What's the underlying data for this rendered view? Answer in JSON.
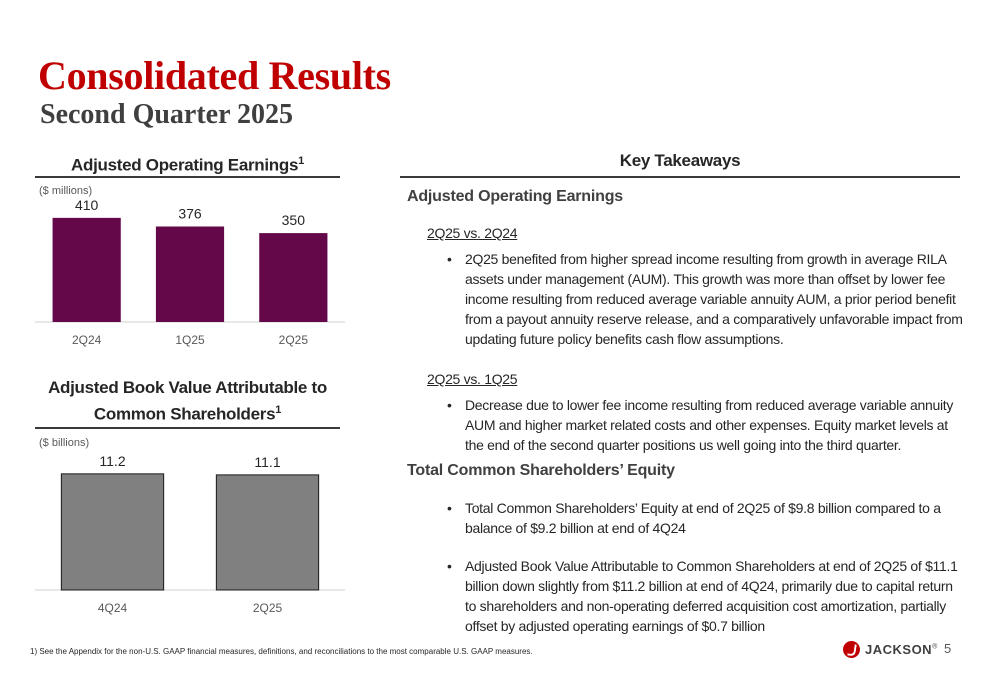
{
  "title": "Consolidated Results",
  "subtitle": "Second Quarter 2025",
  "earnings_chart": {
    "heading": "Adjusted Operating Earnings",
    "heading_sup": "1",
    "unit": "($ millions)",
    "bar_color": "#64084a"
  },
  "bv_chart": {
    "heading_line1": "Adjusted Book Value Attributable to",
    "heading_line2": "Common Shareholders",
    "heading_sup": "1",
    "unit": "($ billions)",
    "bar_color": "#808080"
  },
  "chart_data": [
    {
      "type": "bar",
      "title": "Adjusted Operating Earnings",
      "unit": "($ millions)",
      "categories": [
        "2Q24",
        "1Q25",
        "2Q25"
      ],
      "values": [
        410,
        376,
        350
      ],
      "value_labels": [
        "410",
        "376",
        "350"
      ],
      "ylim": [
        0,
        500
      ],
      "grid": false
    },
    {
      "type": "bar",
      "title": "Adjusted Book Value Attributable to Common Shareholders",
      "unit": "($ billions)",
      "categories": [
        "4Q24",
        "2Q25"
      ],
      "values": [
        11.2,
        11.1
      ],
      "value_labels": [
        "11.2",
        "11.1"
      ],
      "ylim": [
        0,
        13.5
      ],
      "grid": false
    }
  ],
  "key_takeaways": {
    "heading": "Key Takeaways",
    "aoe_heading": "Adjusted Operating Earnings",
    "cmp1": "2Q25 vs. 2Q24",
    "bullet1": "2Q25 benefited from higher spread income resulting from growth in average RILA assets under management (AUM).  This growth was more than offset by lower fee income resulting from reduced average variable annuity AUM, a prior period benefit from a payout annuity reserve release, and a comparatively unfavorable impact from updating future policy benefits cash flow assumptions.",
    "cmp2": "2Q25 vs. 1Q25",
    "bullet2": "Decrease due to lower fee income resulting from reduced average variable annuity AUM and higher market related costs and other expenses.  Equity market levels at the end of the second quarter positions us well going into the third quarter.",
    "equity_heading": "Total Common Shareholders’ Equity",
    "bullet3": "Total Common Shareholders’ Equity at end of 2Q25 of $9.8 billion compared to a balance of $9.2 billion at end of 4Q24",
    "bullet4": "Adjusted Book Value Attributable to Common Shareholders at end of 2Q25 of $11.1 billion down slightly from $11.2 billion at end of 4Q24, primarily due to capital return to shareholders and non-operating deferred acquisition cost amortization, partially offset by adjusted operating earnings of $0.7 billion",
    "bullet_glyph": "•"
  },
  "footnote": "1) See the Appendix for the non-U.S. GAAP financial measures, definitions, and reconciliations to the most comparable U.S. GAAP measures.",
  "logo_text": "JACKSON",
  "logo_reg": "®",
  "page_number": "5",
  "colors": {
    "title": "#c00000",
    "accent_bar": "#64084a",
    "grey_bar": "#808080"
  }
}
